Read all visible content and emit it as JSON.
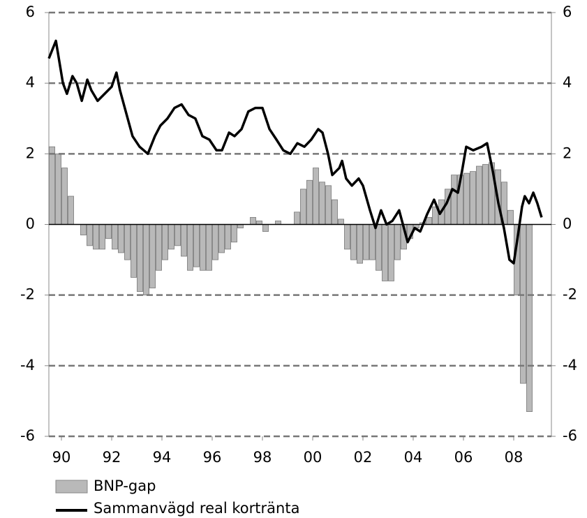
{
  "chart_data": {
    "type": "combo",
    "xlim": [
      1990,
      2010
    ],
    "xticks": [
      {
        "value": 1990.5,
        "label": "90"
      },
      {
        "value": 1992.5,
        "label": "92"
      },
      {
        "value": 1994.5,
        "label": "94"
      },
      {
        "value": 1996.5,
        "label": "96"
      },
      {
        "value": 1998.5,
        "label": "98"
      },
      {
        "value": 2000.5,
        "label": "00"
      },
      {
        "value": 2002.5,
        "label": "02"
      },
      {
        "value": 2004.5,
        "label": "04"
      },
      {
        "value": 2006.5,
        "label": "06"
      },
      {
        "value": 2008.5,
        "label": "08"
      }
    ],
    "ylim": [
      -6,
      6
    ],
    "yticks": [
      -6,
      -4,
      -2,
      0,
      2,
      4,
      6
    ],
    "y2lim": [
      -6,
      6
    ],
    "y2ticks": [
      -6,
      -4,
      -2,
      0,
      2,
      4,
      6
    ],
    "grid": true,
    "series": [
      {
        "name": "BNP-gap",
        "kind": "bar",
        "color": "#b9b9b9",
        "x": [
          1990.125,
          1990.375,
          1990.625,
          1990.875,
          1991.125,
          1991.375,
          1991.625,
          1991.875,
          1992.125,
          1992.375,
          1992.625,
          1992.875,
          1993.125,
          1993.375,
          1993.625,
          1993.875,
          1994.125,
          1994.375,
          1994.625,
          1994.875,
          1995.125,
          1995.375,
          1995.625,
          1995.875,
          1996.125,
          1996.375,
          1996.625,
          1996.875,
          1997.125,
          1997.375,
          1997.625,
          1997.875,
          1998.125,
          1998.375,
          1998.625,
          1998.875,
          1999.125,
          1999.375,
          1999.625,
          1999.875,
          2000.125,
          2000.375,
          2000.625,
          2000.875,
          2001.125,
          2001.375,
          2001.625,
          2001.875,
          2002.125,
          2002.375,
          2002.625,
          2002.875,
          2003.125,
          2003.375,
          2003.625,
          2003.875,
          2004.125,
          2004.375,
          2004.625,
          2004.875,
          2005.125,
          2005.375,
          2005.625,
          2005.875,
          2006.125,
          2006.375,
          2006.625,
          2006.875,
          2007.125,
          2007.375,
          2007.625,
          2007.875,
          2008.125,
          2008.375,
          2008.625,
          2008.875,
          2009.125
        ],
        "values": [
          2.2,
          2.0,
          1.6,
          0.8,
          0.0,
          -0.3,
          -0.6,
          -0.7,
          -0.7,
          -0.4,
          -0.7,
          -0.8,
          -1.0,
          -1.5,
          -1.9,
          -2.0,
          -1.8,
          -1.3,
          -1.0,
          -0.7,
          -0.6,
          -0.9,
          -1.3,
          -1.2,
          -1.3,
          -1.3,
          -1.0,
          -0.8,
          -0.7,
          -0.5,
          -0.1,
          0.0,
          0.2,
          0.1,
          -0.2,
          0.0,
          0.1,
          0.0,
          0.0,
          0.35,
          1.0,
          1.25,
          1.6,
          1.2,
          1.1,
          0.7,
          0.15,
          -0.7,
          -1.0,
          -1.1,
          -1.0,
          -1.0,
          -1.3,
          -1.6,
          -1.6,
          -1.0,
          -0.7,
          -0.4,
          -0.1,
          0.05,
          0.2,
          0.5,
          0.7,
          1.0,
          1.4,
          1.4,
          1.45,
          1.5,
          1.65,
          1.7,
          1.75,
          1.55,
          1.2,
          0.4,
          -2.0,
          -4.5,
          -5.3
        ]
      },
      {
        "name": "Sammanvägd real kortränta",
        "kind": "line",
        "color": "#000000",
        "x": [
          1990.0,
          1990.28,
          1990.56,
          1990.72,
          1990.94,
          1991.11,
          1991.31,
          1991.53,
          1991.69,
          1991.94,
          1992.22,
          1992.5,
          1992.69,
          1992.83,
          1993.06,
          1993.33,
          1993.61,
          1993.94,
          1994.22,
          1994.44,
          1994.72,
          1995.0,
          1995.28,
          1995.56,
          1995.83,
          1996.11,
          1996.39,
          1996.67,
          1996.89,
          1997.17,
          1997.39,
          1997.67,
          1997.94,
          1998.22,
          1998.5,
          1998.78,
          1999.06,
          1999.33,
          1999.61,
          1999.89,
          2000.17,
          2000.44,
          2000.72,
          2000.89,
          2001.11,
          2001.28,
          2001.56,
          2001.67,
          2001.83,
          2002.06,
          2002.33,
          2002.5,
          2002.78,
          2003.0,
          2003.22,
          2003.44,
          2003.67,
          2003.94,
          2004.28,
          2004.56,
          2004.78,
          2005.06,
          2005.33,
          2005.56,
          2005.83,
          2006.06,
          2006.28,
          2006.44,
          2006.61,
          2006.89,
          2007.22,
          2007.44,
          2007.67,
          2007.89,
          2008.11,
          2008.33,
          2008.5,
          2008.67,
          2008.83,
          2008.94,
          2009.11,
          2009.28,
          2009.44,
          2009.61
        ],
        "values": [
          4.7,
          5.2,
          4.0,
          3.7,
          4.2,
          4.0,
          3.5,
          4.1,
          3.8,
          3.5,
          3.7,
          3.9,
          4.3,
          3.8,
          3.2,
          2.5,
          2.2,
          2.0,
          2.5,
          2.8,
          3.0,
          3.3,
          3.4,
          3.1,
          3.0,
          2.5,
          2.4,
          2.1,
          2.1,
          2.6,
          2.5,
          2.7,
          3.2,
          3.3,
          3.3,
          2.7,
          2.4,
          2.1,
          2.0,
          2.3,
          2.2,
          2.4,
          2.7,
          2.6,
          2.0,
          1.4,
          1.6,
          1.8,
          1.3,
          1.1,
          1.3,
          1.1,
          0.4,
          -0.1,
          0.4,
          0.0,
          0.1,
          0.4,
          -0.5,
          -0.1,
          -0.2,
          0.3,
          0.7,
          0.3,
          0.6,
          1.0,
          0.9,
          1.5,
          2.2,
          2.1,
          2.2,
          2.3,
          1.5,
          0.6,
          -0.1,
          -1.0,
          -1.1,
          -0.3,
          0.5,
          0.8,
          0.6,
          0.9,
          0.6,
          0.2
        ]
      }
    ]
  }
}
